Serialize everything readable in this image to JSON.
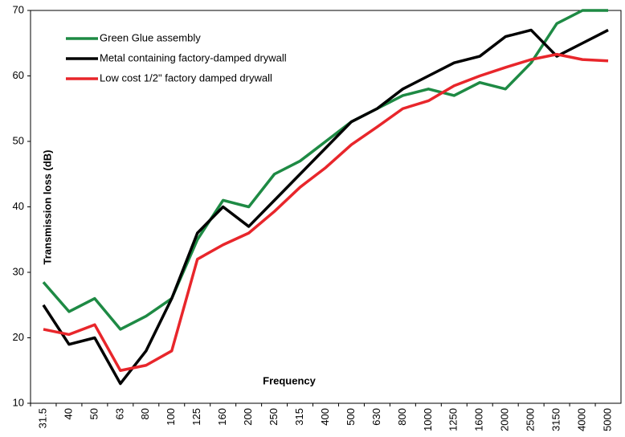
{
  "chart_data": {
    "type": "line",
    "xlabel": "Frequency",
    "ylabel": "Transmission loss (dB)",
    "categories": [
      "31.5",
      "40",
      "50",
      "63",
      "80",
      "100",
      "125",
      "160",
      "200",
      "250",
      "315",
      "400",
      "500",
      "630",
      "800",
      "1000",
      "1250",
      "1600",
      "2000",
      "2500",
      "3150",
      "4000",
      "5000"
    ],
    "series": [
      {
        "name": "Green Glue assembly",
        "color": "#1e8a44",
        "values": [
          28.5,
          24,
          26,
          21.3,
          23.3,
          26,
          35,
          41,
          40,
          45,
          47,
          50,
          53,
          55,
          57,
          58,
          57,
          59,
          58,
          62,
          68,
          70,
          70
        ]
      },
      {
        "name": "Metal containing factory-damped drywall",
        "color": "#000000",
        "values": [
          25,
          19,
          20,
          13,
          18,
          26,
          36,
          40,
          37,
          41,
          45,
          49,
          53,
          55,
          58,
          60,
          62,
          63,
          66,
          67,
          63,
          65,
          67
        ]
      },
      {
        "name": "Low cost 1/2\" factory damped drywall",
        "color": "#e8262b",
        "values": [
          21.3,
          20.5,
          22,
          15,
          15.8,
          18,
          32,
          34.2,
          36,
          39.3,
          43,
          46,
          49.5,
          52.2,
          55,
          56.2,
          58.5,
          60,
          61.3,
          62.5,
          63.3,
          62.5,
          62.3
        ]
      }
    ],
    "ylim": [
      10,
      70
    ],
    "yticks": [
      10,
      20,
      30,
      40,
      50,
      60,
      70
    ],
    "legend": "upper left"
  }
}
